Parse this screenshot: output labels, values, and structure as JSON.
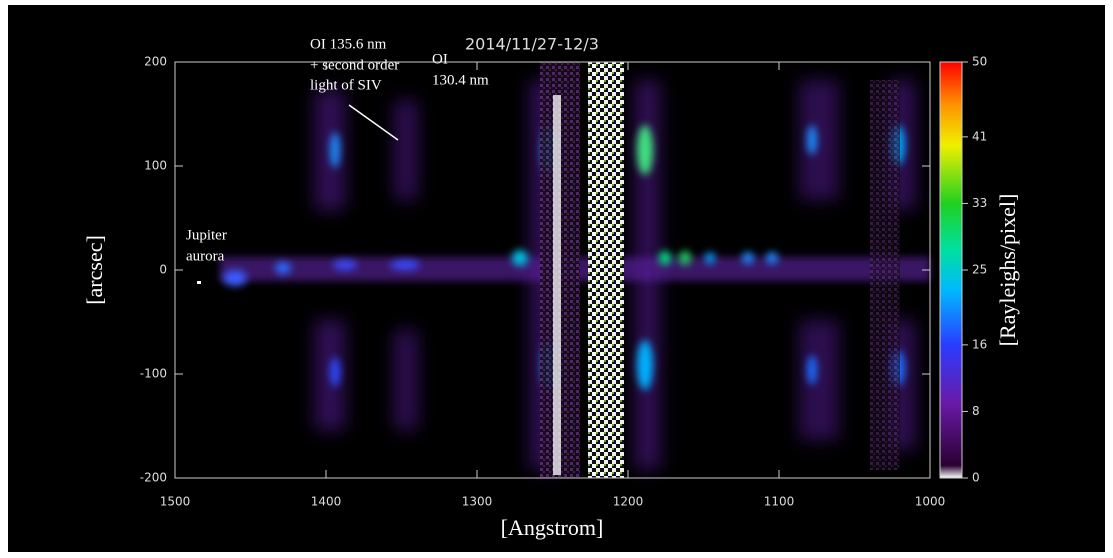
{
  "chart_data": {
    "type": "spectral-image",
    "title": "2014/11/27-12/3",
    "x_label": "[Angstrom]",
    "y_label": "[arcsec]",
    "xlim": [
      1500,
      1000
    ],
    "xticks": [
      1500,
      1400,
      1300,
      1200,
      1100,
      1000
    ],
    "ylim": [
      -200,
      200
    ],
    "yticks": [
      -200,
      -100,
      0,
      100,
      200
    ],
    "colorbar": {
      "label": "[Rayleighs/pixel]",
      "lim": [
        0,
        50
      ],
      "ticks": [
        0,
        8,
        16,
        25,
        33,
        41,
        50
      ]
    },
    "annotations": [
      {
        "lines": [
          "OI 135.6 nm",
          "+ second order",
          "light of SIV"
        ]
      },
      {
        "lines": [
          "OI",
          "130.4 nm"
        ]
      },
      {
        "lines": [
          "Jupiter",
          "aurora"
        ]
      }
    ]
  }
}
